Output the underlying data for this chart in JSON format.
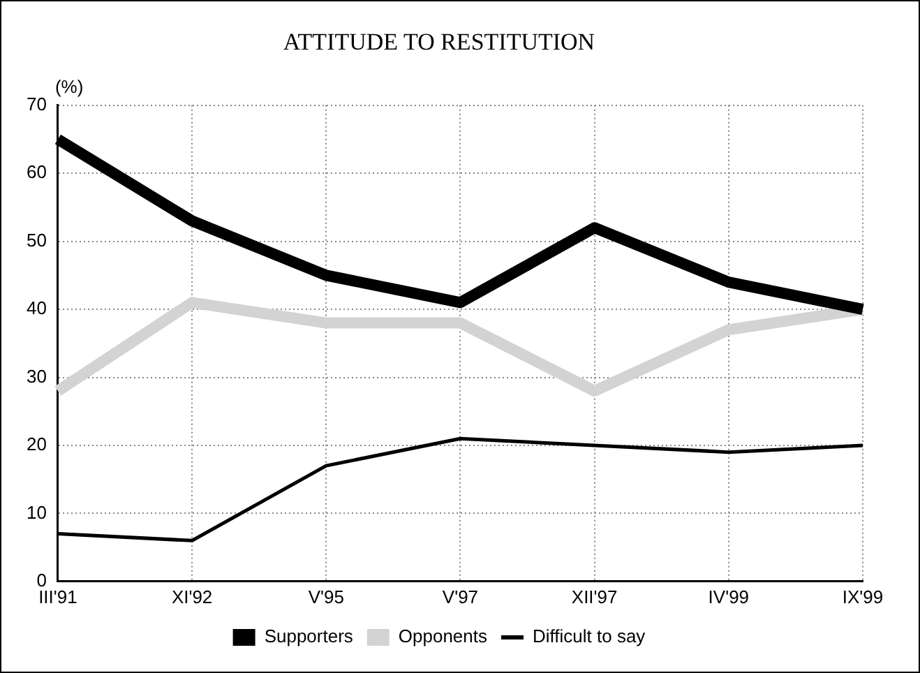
{
  "chart_data": {
    "type": "line",
    "title": "ATTITUDE TO RESTITUTION",
    "ylabel": "(%)",
    "categories": [
      "III'91",
      "XI'92",
      "V'95",
      "V'97",
      "XII'97",
      "IV'99",
      "IX'99"
    ],
    "series": [
      {
        "name": "Supporters",
        "color": "#000000",
        "values": [
          65,
          53,
          45,
          41,
          52,
          44,
          40
        ]
      },
      {
        "name": "Opponents",
        "color": "#d3d3d3",
        "values": [
          28,
          41,
          38,
          38,
          28,
          37,
          40
        ]
      },
      {
        "name": "Difficult to say",
        "color": "#000000",
        "values": [
          7,
          6,
          17,
          21,
          20,
          19,
          20
        ]
      }
    ],
    "ylim": [
      0,
      70
    ],
    "yticks": [
      0,
      10,
      20,
      30,
      40,
      50,
      60,
      70
    ],
    "grid": true,
    "legend": "bottom",
    "marker": "none",
    "line_style": "solid"
  }
}
